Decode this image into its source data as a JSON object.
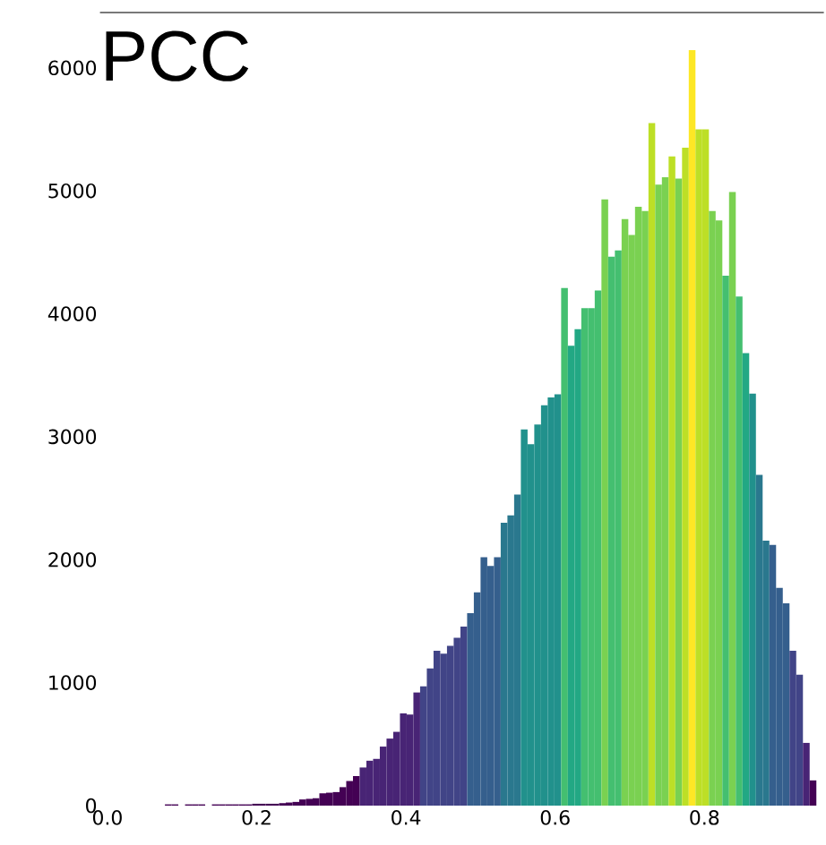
{
  "chart_data": {
    "type": "histogram",
    "title": "PCC",
    "bins": [
      0.059,
      0.068,
      0.077,
      0.086,
      0.095,
      0.104,
      0.113,
      0.122,
      0.131,
      0.14,
      0.149,
      0.158,
      0.167,
      0.176,
      0.185,
      0.194,
      0.203,
      0.212,
      0.221,
      0.23,
      0.239,
      0.248,
      0.257,
      0.266,
      0.275,
      0.284,
      0.293,
      0.302,
      0.311,
      0.32,
      0.329,
      0.338,
      0.347,
      0.356,
      0.365,
      0.374,
      0.383,
      0.392,
      0.401,
      0.41,
      0.419,
      0.428,
      0.437,
      0.446,
      0.455,
      0.464,
      0.473,
      0.482,
      0.491,
      0.5,
      0.509,
      0.518,
      0.527,
      0.536,
      0.545,
      0.554,
      0.563,
      0.572,
      0.581,
      0.59,
      0.599,
      0.608,
      0.617,
      0.626,
      0.635,
      0.644,
      0.653,
      0.662,
      0.671,
      0.68,
      0.689,
      0.698,
      0.707,
      0.716,
      0.725,
      0.734,
      0.743,
      0.752,
      0.761,
      0.77,
      0.779,
      0.788,
      0.797,
      0.806,
      0.815,
      0.824,
      0.833,
      0.842,
      0.851,
      0.86,
      0.869,
      0.878,
      0.887,
      0.896,
      0.905,
      0.914,
      0.923,
      0.932,
      0.941,
      0.95
    ],
    "values": [
      0,
      0,
      10,
      10,
      0,
      10,
      10,
      10,
      0,
      10,
      10,
      10,
      10,
      10,
      10,
      15,
      15,
      15,
      15,
      20,
      25,
      30,
      50,
      55,
      60,
      100,
      105,
      110,
      150,
      200,
      240,
      310,
      365,
      380,
      480,
      545,
      600,
      750,
      740,
      920,
      970,
      1115,
      1260,
      1235,
      1300,
      1365,
      1455,
      1565,
      1735,
      2020,
      1950,
      2020,
      2300,
      2360,
      2530,
      3060,
      2940,
      3100,
      3255,
      3320,
      3345,
      4210,
      3740,
      3875,
      4045,
      4045,
      4190,
      4930,
      4465,
      4515,
      4770,
      4640,
      4870,
      4835,
      5550,
      5050,
      5110,
      5280,
      5100,
      5350,
      6145,
      5500,
      5500,
      4835,
      4760,
      4310,
      4990,
      4140,
      3680,
      3350,
      2690,
      2155,
      2120,
      1770,
      1645,
      1260,
      1065,
      510,
      205
    ],
    "colors": [
      "#440154",
      "#440154",
      "#440154",
      "#440154",
      "#440154",
      "#440154",
      "#440154",
      "#440154",
      "#440154",
      "#440154",
      "#440154",
      "#440154",
      "#440154",
      "#440154",
      "#440154",
      "#440154",
      "#440154",
      "#440154",
      "#440154",
      "#440154",
      "#440154",
      "#440154",
      "#440154",
      "#440154",
      "#440154",
      "#440154",
      "#440154",
      "#440154",
      "#440154",
      "#440154",
      "#440154",
      "#482475",
      "#482475",
      "#482475",
      "#482475",
      "#482475",
      "#482475",
      "#482475",
      "#482475",
      "#482475",
      "#414487",
      "#414487",
      "#414487",
      "#414487",
      "#414487",
      "#414487",
      "#414487",
      "#355f8d",
      "#355f8d",
      "#355f8d",
      "#355f8d",
      "#355f8d",
      "#2a788e",
      "#2a788e",
      "#2a788e",
      "#21918c",
      "#21918c",
      "#21918c",
      "#21918c",
      "#21918c",
      "#21918c",
      "#44bf70",
      "#22a884",
      "#22a884",
      "#44bf70",
      "#44bf70",
      "#44bf70",
      "#7ad151",
      "#44bf70",
      "#44bf70",
      "#7ad151",
      "#7ad151",
      "#7ad151",
      "#7ad151",
      "#bddf26",
      "#7ad151",
      "#7ad151",
      "#bddf26",
      "#7ad151",
      "#bddf26",
      "#fde725",
      "#bddf26",
      "#bddf26",
      "#7ad151",
      "#7ad151",
      "#44bf70",
      "#7ad151",
      "#44bf70",
      "#22a884",
      "#21918c",
      "#2a788e",
      "#2a788e",
      "#355f8d",
      "#355f8d",
      "#355f8d",
      "#414487",
      "#414487",
      "#482475",
      "#440154"
    ],
    "xlim": [
      -0.01,
      0.96
    ],
    "ylim": [
      0,
      6450
    ],
    "xticks": [
      {
        "value": 0,
        "label": "0.0"
      },
      {
        "value": 0.2,
        "label": "0.2"
      },
      {
        "value": 0.4,
        "label": "0.4"
      },
      {
        "value": 0.6,
        "label": "0.6"
      },
      {
        "value": 0.8,
        "label": "0.8"
      }
    ],
    "yticks": [
      0,
      1000,
      2000,
      3000,
      4000,
      5000,
      6000
    ]
  }
}
